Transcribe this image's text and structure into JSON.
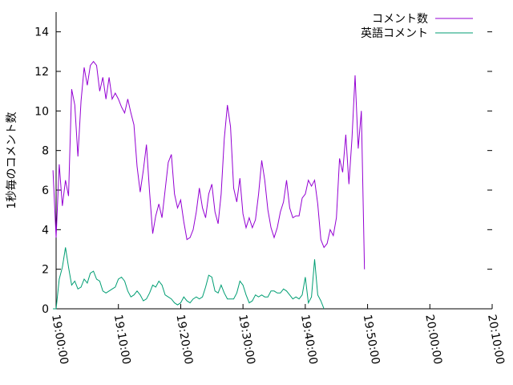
{
  "chart_data": {
    "type": "line",
    "title": "",
    "xlabel": "",
    "ylabel": "1秒毎のコメント数",
    "xlim": [
      "19:00:00",
      "20:10:00"
    ],
    "ylim": [
      0,
      15
    ],
    "x_ticks": [
      "19:00:00",
      "19:10:00",
      "19:20:00",
      "19:30:00",
      "19:40:00",
      "19:50:00",
      "20:00:00",
      "20:10:00"
    ],
    "y_ticks": [
      "0",
      "2",
      "4",
      "6",
      "8",
      "10",
      "12",
      "14"
    ],
    "grid": false,
    "legend_position": "top-right",
    "x_time_step_seconds": 30,
    "x_start": "18:59:30",
    "series": [
      {
        "name": "コメント数",
        "color": "#9400d3",
        "values": [
          7.0,
          3.6,
          7.3,
          5.2,
          6.5,
          5.7,
          11.1,
          10.3,
          7.7,
          10.5,
          12.2,
          11.3,
          12.3,
          12.5,
          12.3,
          11.0,
          11.7,
          10.6,
          11.7,
          10.6,
          10.9,
          10.6,
          10.2,
          9.9,
          10.6,
          9.9,
          9.3,
          7.2,
          5.9,
          7.0,
          8.3,
          5.9,
          3.8,
          4.7,
          5.3,
          4.6,
          6.0,
          7.4,
          7.8,
          5.8,
          5.1,
          5.5,
          4.4,
          3.5,
          3.6,
          4.0,
          4.9,
          6.1,
          5.1,
          4.6,
          5.8,
          6.3,
          4.9,
          4.3,
          5.8,
          8.6,
          10.3,
          9.2,
          6.1,
          5.4,
          6.6,
          4.8,
          4.1,
          4.6,
          4.1,
          4.5,
          5.8,
          7.5,
          6.5,
          5.0,
          4.1,
          3.6,
          4.1,
          4.9,
          5.4,
          6.5,
          5.1,
          4.6,
          4.7,
          4.7,
          5.6,
          5.8,
          6.5,
          6.2,
          6.5,
          5.3,
          3.5,
          3.1,
          3.3,
          4.0,
          3.7,
          4.6,
          7.6,
          6.9,
          8.8,
          6.3,
          8.6,
          11.8,
          8.1,
          10.0,
          2.0
        ]
      },
      {
        "name": "英語コメント",
        "color": "#009e73",
        "values": [
          0.0,
          0.0,
          1.5,
          2.1,
          3.1,
          2.1,
          1.2,
          1.4,
          1.0,
          1.1,
          1.5,
          1.3,
          1.8,
          1.9,
          1.5,
          1.4,
          0.9,
          0.8,
          0.9,
          1.0,
          1.1,
          1.5,
          1.6,
          1.4,
          0.9,
          0.6,
          0.7,
          0.9,
          0.7,
          0.4,
          0.5,
          0.8,
          1.2,
          1.1,
          1.4,
          1.2,
          0.7,
          0.6,
          0.5,
          0.3,
          0.2,
          0.3,
          0.6,
          0.4,
          0.3,
          0.5,
          0.6,
          0.5,
          0.6,
          1.1,
          1.7,
          1.6,
          0.9,
          0.8,
          1.2,
          0.8,
          0.5,
          0.5,
          0.5,
          0.8,
          1.4,
          1.2,
          0.7,
          0.3,
          0.4,
          0.7,
          0.6,
          0.7,
          0.6,
          0.6,
          0.9,
          0.9,
          0.8,
          0.8,
          1.0,
          0.9,
          0.7,
          0.5,
          0.6,
          0.5,
          0.7,
          1.6,
          0.3,
          0.6,
          2.5,
          0.7,
          0.4,
          0.0
        ]
      }
    ]
  }
}
